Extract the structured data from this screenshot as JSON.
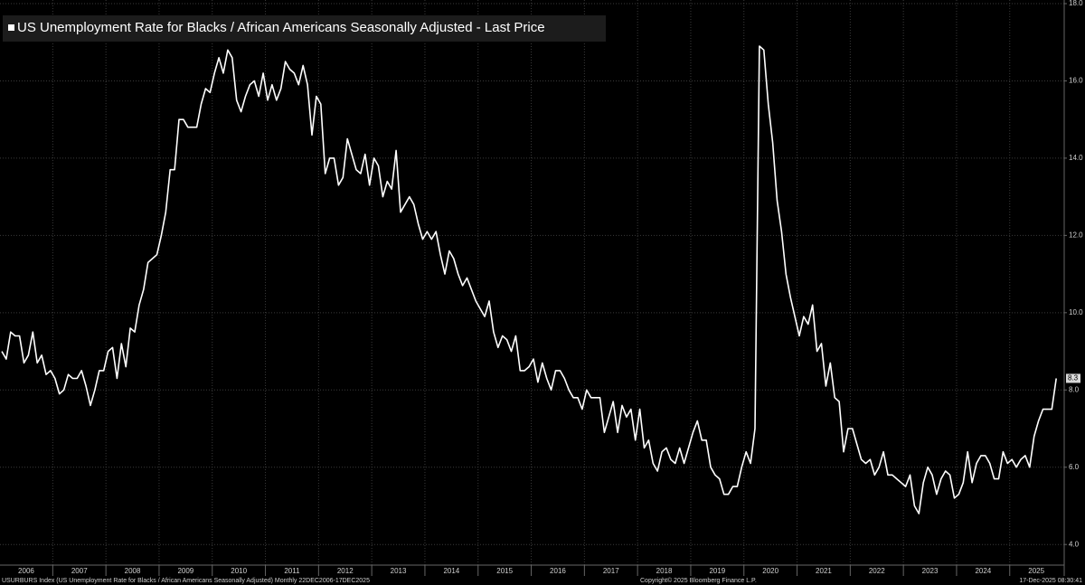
{
  "chart_data": {
    "type": "line",
    "series": [
      {
        "name": "US Unemployment Rate for Blacks / African Americans Seasonally Adjusted - Last Price",
        "color": "#ffffff",
        "values": [
          9.0,
          8.8,
          9.5,
          9.4,
          9.4,
          8.7,
          8.9,
          9.5,
          8.7,
          8.9,
          8.4,
          8.5,
          8.3,
          7.9,
          8.0,
          8.4,
          8.3,
          8.3,
          8.5,
          8.1,
          7.6,
          8.0,
          8.5,
          8.5,
          9.0,
          9.1,
          8.3,
          9.2,
          8.6,
          9.6,
          9.5,
          10.2,
          10.6,
          11.3,
          11.4,
          11.5,
          12.0,
          12.6,
          13.7,
          13.7,
          15.0,
          15.0,
          14.8,
          14.8,
          14.8,
          15.4,
          15.8,
          15.7,
          16.2,
          16.6,
          16.2,
          16.8,
          16.6,
          15.5,
          15.2,
          15.6,
          15.9,
          16.0,
          15.6,
          16.2,
          15.5,
          15.9,
          15.5,
          15.8,
          16.5,
          16.3,
          16.2,
          15.9,
          16.4,
          15.9,
          14.6,
          15.6,
          15.4,
          13.6,
          14.0,
          14.0,
          13.3,
          13.5,
          14.5,
          14.1,
          13.7,
          13.6,
          14.1,
          13.3,
          14.0,
          13.8,
          13.0,
          13.4,
          13.2,
          14.2,
          12.6,
          12.8,
          13.0,
          12.8,
          12.3,
          11.9,
          12.1,
          11.9,
          12.1,
          11.5,
          11.0,
          11.6,
          11.4,
          11.0,
          10.7,
          10.9,
          10.6,
          10.3,
          10.1,
          9.9,
          10.3,
          9.5,
          9.1,
          9.4,
          9.3,
          9.0,
          9.4,
          8.5,
          8.5,
          8.6,
          8.8,
          8.2,
          8.7,
          8.3,
          8.0,
          8.5,
          8.5,
          8.3,
          8.0,
          7.8,
          7.8,
          7.5,
          8.0,
          7.8,
          7.8,
          7.8,
          6.9,
          7.3,
          7.7,
          6.9,
          7.6,
          7.3,
          7.5,
          6.7,
          7.5,
          6.5,
          6.7,
          6.1,
          5.9,
          6.4,
          6.5,
          6.2,
          6.1,
          6.5,
          6.1,
          6.5,
          6.9,
          7.2,
          6.7,
          6.7,
          6.0,
          5.8,
          5.7,
          5.3,
          5.3,
          5.5,
          5.5,
          6.0,
          6.4,
          6.1,
          7.0,
          16.9,
          16.8,
          15.4,
          14.4,
          12.9,
          12.1,
          11.0,
          10.4,
          9.9,
          9.4,
          9.9,
          9.7,
          10.2,
          9.0,
          9.2,
          8.1,
          8.7,
          7.8,
          7.7,
          6.4,
          7.0,
          7.0,
          6.6,
          6.2,
          6.1,
          6.2,
          5.8,
          6.0,
          6.4,
          5.8,
          5.8,
          5.7,
          5.6,
          5.5,
          5.8,
          5.0,
          4.8,
          5.6,
          6.0,
          5.8,
          5.3,
          5.7,
          5.9,
          5.8,
          5.2,
          5.3,
          5.6,
          6.4,
          5.6,
          6.1,
          6.3,
          6.3,
          6.1,
          5.7,
          5.7,
          6.4,
          6.1,
          6.2,
          6.0,
          6.2,
          6.3,
          6.0,
          6.8,
          7.2,
          7.5,
          7.5,
          7.5,
          8.3
        ]
      }
    ],
    "categories": [
      "2006",
      null,
      null,
      null,
      null,
      null,
      null,
      null,
      null,
      null,
      null,
      null,
      "2007",
      null,
      null,
      null,
      null,
      null,
      null,
      null,
      null,
      null,
      null,
      null,
      "2008",
      null,
      null,
      null,
      null,
      null,
      null,
      null,
      null,
      null,
      null,
      null,
      "2009",
      null,
      null,
      null,
      null,
      null,
      null,
      null,
      null,
      null,
      null,
      null,
      "2010",
      null,
      null,
      null,
      null,
      null,
      null,
      null,
      null,
      null,
      null,
      null,
      "2011",
      null,
      null,
      null,
      null,
      null,
      null,
      null,
      null,
      null,
      null,
      null,
      "2012",
      null,
      null,
      null,
      null,
      null,
      null,
      null,
      null,
      null,
      null,
      null,
      "2013",
      null,
      null,
      null,
      null,
      null,
      null,
      null,
      null,
      null,
      null,
      null,
      "2014",
      null,
      null,
      null,
      null,
      null,
      null,
      null,
      null,
      null,
      null,
      null,
      "2015",
      null,
      null,
      null,
      null,
      null,
      null,
      null,
      null,
      null,
      null,
      null,
      "2016",
      null,
      null,
      null,
      null,
      null,
      null,
      null,
      null,
      null,
      null,
      null,
      "2017",
      null,
      null,
      null,
      null,
      null,
      null,
      null,
      null,
      null,
      null,
      null,
      "2018",
      null,
      null,
      null,
      null,
      null,
      null,
      null,
      null,
      null,
      null,
      null,
      "2019",
      null,
      null,
      null,
      null,
      null,
      null,
      null,
      null,
      null,
      null,
      null,
      "2020",
      null,
      null,
      null,
      null,
      null,
      null,
      null,
      null,
      null,
      null,
      null,
      "2021",
      null,
      null,
      null,
      null,
      null,
      null,
      null,
      null,
      null,
      null,
      null,
      "2022",
      null,
      null,
      null,
      null,
      null,
      null,
      null,
      null,
      null,
      null,
      null,
      "2023",
      null,
      null,
      null,
      null,
      null,
      null,
      null,
      null,
      null,
      null,
      null,
      "2024",
      null,
      null,
      null,
      null,
      null,
      null,
      null,
      null,
      null,
      null,
      null,
      "2025",
      null,
      null,
      null,
      null,
      null,
      null,
      null,
      null,
      null,
      null
    ],
    "ylim": [
      3.45,
      18
    ],
    "yticks": [
      {
        "value": 4,
        "label": "4.0"
      },
      {
        "value": 6,
        "label": "6.0"
      },
      {
        "value": 8,
        "label": "8.0"
      },
      {
        "value": 10,
        "label": "10.0"
      },
      {
        "value": 12,
        "label": "12.0"
      },
      {
        "value": 14,
        "label": "14.0"
      },
      {
        "value": 16,
        "label": "16.0"
      },
      {
        "value": 18,
        "label": "18.0"
      }
    ],
    "grid": true,
    "footer": {
      "source": "USURBURS Index (US Unemployment Rate for Blacks / African Americans Seasonally Adjusted) Monthly 22DEC2006-17DEC2025",
      "copyright": "Copyright© 2025 Bloomberg Finance L.P.",
      "timestamp": "17-Dec-2025 08:30:41"
    }
  }
}
